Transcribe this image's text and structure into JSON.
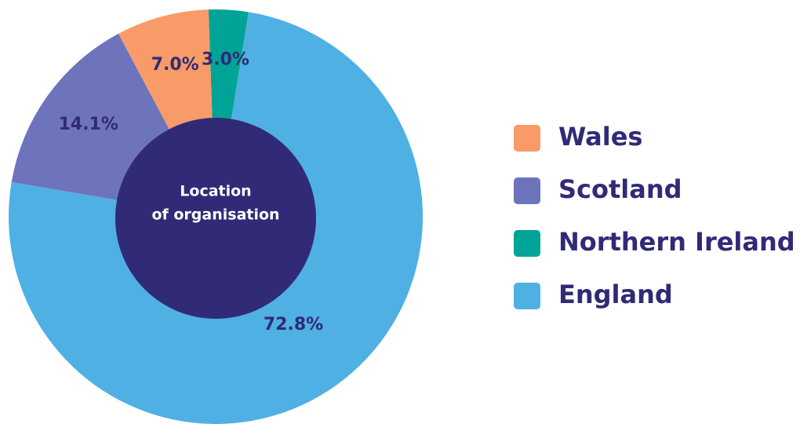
{
  "chart_data": {
    "type": "donut",
    "center_label": [
      "Location",
      "of organisation"
    ],
    "categories": [
      "Wales",
      "Scotland",
      "Northern Ireland",
      "England"
    ],
    "values": [
      7.0,
      14.1,
      3.0,
      72.8
    ],
    "value_labels": [
      "7.0%",
      "14.1%",
      "3.0%",
      "72.8%"
    ],
    "colors": [
      "#f89b68",
      "#6d74bc",
      "#00a497",
      "#4fb0e3"
    ],
    "legend": "right"
  }
}
